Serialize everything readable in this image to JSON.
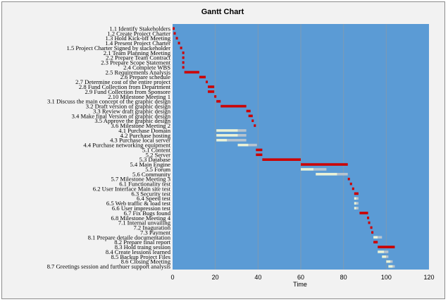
{
  "colors": {
    "plot_background": "#5b9bd5",
    "critical_bar": "#cc0000",
    "noncritical_bar": "#ebf2d6",
    "slack_bar": "#b7c4cf",
    "gridline": "#7f9bb3",
    "frame_background": "#f2f2f2"
  },
  "chart_data": {
    "type": "bar",
    "orientation": "horizontal",
    "subtype": "gantt",
    "title": "Gantt Chart",
    "xlabel": "Time",
    "ylabel": "",
    "xlim": [
      0,
      120
    ],
    "x_ticks": [
      0,
      20,
      40,
      60,
      80,
      100,
      120
    ],
    "grid": "vertical",
    "legend": "none",
    "tasks": [
      {
        "name": "1.1 Identify Stakeholders",
        "start": 0,
        "duration": 1,
        "critical": true
      },
      {
        "name": "1.2 Create Project Charter",
        "start": 0.5,
        "duration": 1,
        "critical": true
      },
      {
        "name": "1.3 Hold Kick-off Meeting",
        "start": 1.5,
        "duration": 1,
        "critical": true
      },
      {
        "name": "1.4 Present Project Charter",
        "start": 2.5,
        "duration": 1,
        "critical": true
      },
      {
        "name": "1.5 Project Charter Signed by stackeholder",
        "start": 3.5,
        "duration": 1,
        "critical": true
      },
      {
        "name": "2.1 Team Planning Meeting",
        "start": 4.5,
        "duration": 1,
        "critical": true
      },
      {
        "name": "2.2 Prepare Team Contract",
        "start": 4.5,
        "duration": 1,
        "critical": true
      },
      {
        "name": "2.3 Prepare Scope Statement",
        "start": 4.5,
        "duration": 1,
        "critical": true
      },
      {
        "name": "2.4 Complete WBS",
        "start": 4.5,
        "duration": 1,
        "critical": true
      },
      {
        "name": "2.5 Requirements Analysis",
        "start": 5.5,
        "duration": 7,
        "critical": true
      },
      {
        "name": "2.6 Prepare schedule",
        "start": 12.5,
        "duration": 3,
        "critical": true
      },
      {
        "name": "2.7 Determine cost of the entire project",
        "start": 15.5,
        "duration": 1,
        "critical": true
      },
      {
        "name": "2.8 Fund Collection from Department",
        "start": 16.5,
        "duration": 3,
        "critical": true
      },
      {
        "name": "2.9 Fund Collection from Sponsore",
        "start": 16.5,
        "duration": 3,
        "critical": true
      },
      {
        "name": "2.10 Milestone Meeting 1",
        "start": 19.5,
        "duration": 1,
        "critical": true
      },
      {
        "name": "3.1 Discuss the main concept of the graphic design",
        "start": 20.5,
        "duration": 2,
        "critical": true
      },
      {
        "name": "3.2 Draft version of graphic design",
        "start": 22.5,
        "duration": 12,
        "critical": true
      },
      {
        "name": "3.3 Review draft graphic design",
        "start": 34.5,
        "duration": 2,
        "critical": true
      },
      {
        "name": "3.4 Make final Version of graphic design",
        "start": 35.5,
        "duration": 2,
        "critical": true
      },
      {
        "name": "3.5 Approve the graphic design",
        "start": 37,
        "duration": 1,
        "critical": true
      },
      {
        "name": "3.6 Milestone Meeting 2",
        "start": 38,
        "duration": 1,
        "critical": true
      },
      {
        "name": "4.1 Purchase Domain",
        "start": 20.5,
        "duration": 10,
        "critical": false,
        "slack": 4
      },
      {
        "name": "4.2 Purchase hosting",
        "start": 20.5,
        "duration": 10,
        "critical": false,
        "slack": 4
      },
      {
        "name": "4.3 Purchase local server",
        "start": 20.5,
        "duration": 5,
        "critical": false,
        "slack": 9
      },
      {
        "name": "4.4 Purchase networking equipment",
        "start": 30.5,
        "duration": 5,
        "critical": false,
        "slack": 4
      },
      {
        "name": "5.1 Content",
        "start": 39,
        "duration": 3,
        "critical": true
      },
      {
        "name": "5.2 Server",
        "start": 39,
        "duration": 3,
        "critical": true
      },
      {
        "name": "5.3 Database",
        "start": 42,
        "duration": 18,
        "critical": true
      },
      {
        "name": "5.4 Main Engine",
        "start": 60,
        "duration": 22,
        "critical": true
      },
      {
        "name": "5.5 Forum",
        "start": 60,
        "duration": 6,
        "critical": false,
        "slack": 6
      },
      {
        "name": "5.6 Community",
        "start": 67,
        "duration": 10,
        "critical": false,
        "slack": 5
      },
      {
        "name": "5.7 Milestone Meeting 3",
        "start": 82,
        "duration": 1,
        "critical": true
      },
      {
        "name": "6.1 Functionality test",
        "start": 83,
        "duration": 1,
        "critical": true
      },
      {
        "name": "6.2 User Interface Main site test",
        "start": 84,
        "duration": 1,
        "critical": true
      },
      {
        "name": "6.3 Security test",
        "start": 85,
        "duration": 2,
        "critical": true
      },
      {
        "name": "6.4 Speed test",
        "start": 85,
        "duration": 1,
        "critical": false,
        "slack": 1
      },
      {
        "name": "6.5 Web traffic & load test",
        "start": 85,
        "duration": 1,
        "critical": false,
        "slack": 1
      },
      {
        "name": "6.6 User impression test",
        "start": 85,
        "duration": 1,
        "critical": false,
        "slack": 1
      },
      {
        "name": "6.7 Fix Bugs found",
        "start": 87.5,
        "duration": 4,
        "critical": true
      },
      {
        "name": "6.8 Milestone Meeting 4",
        "start": 91,
        "duration": 1,
        "critical": true
      },
      {
        "name": "7.1 Internal unvailing",
        "start": 91.5,
        "duration": 1,
        "critical": true
      },
      {
        "name": "7.2 Inaguration",
        "start": 92.5,
        "duration": 1,
        "critical": true
      },
      {
        "name": "7.3 Payment",
        "start": 93,
        "duration": 1,
        "critical": true
      },
      {
        "name": "8.1 Prepare detaile documentation",
        "start": 94,
        "duration": 2,
        "critical": false,
        "slack": 2
      },
      {
        "name": "8.2 Prepare final report",
        "start": 94,
        "duration": 2,
        "critical": true
      },
      {
        "name": "8.3 Hold traing session",
        "start": 96,
        "duration": 8,
        "critical": true
      },
      {
        "name": "8.4 Create lessions learned",
        "start": 96,
        "duration": 3,
        "critical": false,
        "slack": 2
      },
      {
        "name": "8.5 Backup Project Files",
        "start": 98,
        "duration": 2,
        "critical": false,
        "slack": 1
      },
      {
        "name": "8.6 Closing Meeting",
        "start": 100,
        "duration": 2,
        "critical": false,
        "slack": 1
      },
      {
        "name": "8.7 Greetings session and furthuer support analysis",
        "start": 101,
        "duration": 2,
        "critical": false,
        "slack": 1
      }
    ]
  }
}
